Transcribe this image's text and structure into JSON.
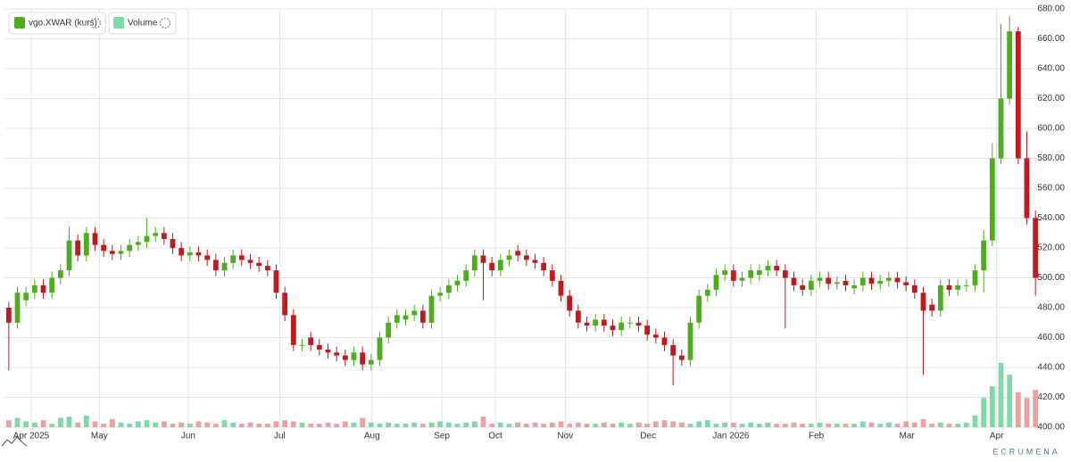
{
  "chart_data": {
    "type": "candlestick",
    "series": [
      {
        "name": "vgo.XWAR (kurs)",
        "color": "#4cae1c",
        "down_color": "#bf1a1f",
        "open": [
          480,
          470,
          485,
          490,
          495,
          490,
          500,
          505,
          525,
          515,
          530,
          522,
          518,
          516,
          518,
          522,
          524,
          528,
          530,
          526,
          520,
          515,
          517,
          515,
          512,
          505,
          510,
          515,
          512,
          510,
          508,
          505,
          490,
          475,
          455,
          460,
          455,
          452,
          450,
          448,
          445,
          450,
          442,
          445,
          460,
          470,
          472,
          475,
          478,
          470,
          488,
          490,
          495,
          498,
          505,
          515,
          510,
          505,
          512,
          518,
          515,
          512,
          510,
          505,
          498,
          488,
          478,
          470,
          468,
          472,
          468,
          465,
          470,
          470,
          468,
          462,
          460,
          455,
          448,
          445,
          470,
          488,
          492,
          502,
          505,
          498,
          500,
          502,
          505,
          508,
          505,
          500,
          495,
          492,
          498,
          500,
          496,
          498,
          493,
          495,
          500,
          496,
          498,
          500,
          497,
          495,
          490,
          482,
          478,
          495,
          492,
          495,
          495,
          505,
          525,
          580,
          620,
          665,
          580,
          540
        ],
        "high": [
          484,
          494,
          494,
          499,
          499,
          504,
          509,
          534,
          529,
          534,
          534,
          526,
          522,
          522,
          526,
          528,
          540,
          534,
          534,
          530,
          524,
          521,
          521,
          519,
          516,
          514,
          519,
          519,
          516,
          514,
          512,
          509,
          494,
          479,
          459,
          464,
          459,
          456,
          454,
          452,
          454,
          454,
          449,
          464,
          474,
          479,
          479,
          482,
          482,
          492,
          494,
          499,
          502,
          509,
          519,
          519,
          514,
          516,
          519,
          522,
          519,
          516,
          514,
          509,
          502,
          492,
          482,
          474,
          476,
          476,
          472,
          474,
          474,
          474,
          472,
          466,
          464,
          459,
          452,
          474,
          492,
          496,
          506,
          509,
          509,
          504,
          509,
          509,
          512,
          512,
          509,
          504,
          499,
          502,
          504,
          504,
          501,
          502,
          499,
          504,
          504,
          502,
          504,
          504,
          501,
          499,
          494,
          486,
          499,
          499,
          499,
          499,
          509,
          532,
          590,
          670,
          675,
          668,
          598,
          545
        ],
        "low": [
          438,
          466,
          481,
          486,
          486,
          486,
          496,
          501,
          511,
          511,
          518,
          514,
          512,
          512,
          514,
          518,
          520,
          524,
          522,
          516,
          511,
          511,
          511,
          508,
          501,
          501,
          506,
          508,
          506,
          504,
          501,
          486,
          471,
          451,
          451,
          451,
          448,
          446,
          444,
          441,
          441,
          438,
          438,
          441,
          456,
          466,
          468,
          471,
          466,
          466,
          484,
          486,
          491,
          494,
          501,
          485,
          501,
          501,
          508,
          511,
          508,
          506,
          501,
          494,
          484,
          474,
          466,
          464,
          464,
          464,
          461,
          461,
          466,
          464,
          458,
          456,
          451,
          428,
          441,
          441,
          466,
          484,
          488,
          498,
          494,
          494,
          496,
          498,
          501,
          501,
          466,
          491,
          488,
          488,
          494,
          492,
          492,
          491,
          489,
          491,
          492,
          492,
          494,
          493,
          491,
          486,
          435,
          474,
          474,
          488,
          488,
          491,
          491,
          490,
          521,
          576,
          616,
          576,
          536,
          488
        ],
        "close": [
          470,
          490,
          490,
          495,
          490,
          500,
          505,
          525,
          515,
          530,
          522,
          518,
          516,
          518,
          522,
          524,
          528,
          530,
          526,
          520,
          515,
          517,
          515,
          512,
          505,
          510,
          515,
          512,
          510,
          508,
          505,
          490,
          475,
          455,
          455,
          455,
          452,
          450,
          448,
          445,
          450,
          442,
          445,
          460,
          470,
          475,
          475,
          478,
          470,
          488,
          490,
          495,
          498,
          505,
          515,
          510,
          505,
          512,
          515,
          515,
          512,
          510,
          505,
          498,
          488,
          478,
          470,
          468,
          472,
          468,
          465,
          470,
          470,
          468,
          462,
          460,
          455,
          448,
          445,
          470,
          488,
          492,
          502,
          505,
          498,
          500,
          505,
          505,
          508,
          505,
          500,
          495,
          492,
          498,
          500,
          496,
          497,
          495,
          495,
          500,
          496,
          498,
          500,
          497,
          495,
          490,
          478,
          478,
          495,
          492,
          495,
          495,
          505,
          525,
          580,
          620,
          665,
          580,
          540,
          500
        ]
      },
      {
        "name": "Volume",
        "color": "#7fd8a8",
        "down_color": "#eba1a1",
        "values": [
          6,
          8,
          5,
          4,
          6,
          3,
          8,
          9,
          4,
          10,
          5,
          3,
          7,
          4,
          3,
          5,
          6,
          4,
          5,
          3,
          4,
          3,
          5,
          4,
          3,
          6,
          4,
          3,
          4,
          3,
          3,
          5,
          6,
          5,
          4,
          3,
          3,
          4,
          3,
          5,
          4,
          8,
          4,
          3,
          4,
          3,
          3,
          4,
          3,
          4,
          5,
          4,
          3,
          4,
          5,
          9,
          3,
          4,
          3,
          4,
          3,
          4,
          3,
          4,
          5,
          3,
          4,
          3,
          3,
          4,
          3,
          4,
          3,
          4,
          3,
          5,
          6,
          5,
          4,
          3,
          5,
          6,
          3,
          4,
          4,
          3,
          4,
          3,
          4,
          3,
          3,
          4,
          3,
          3,
          4,
          3,
          3,
          3,
          3,
          5,
          4,
          3,
          4,
          3,
          5,
          4,
          7,
          3,
          4,
          3,
          3,
          4,
          10,
          25,
          35,
          55,
          45,
          30,
          25,
          32
        ]
      }
    ],
    "ylim": [
      400,
      680
    ],
    "yticks": [
      {
        "value": 400,
        "label": "400.00"
      },
      {
        "value": 420,
        "label": "420.00"
      },
      {
        "value": 440,
        "label": "440.00"
      },
      {
        "value": 460,
        "label": "460.00"
      },
      {
        "value": 480,
        "label": "480.00"
      },
      {
        "value": 500,
        "label": "500.00"
      },
      {
        "value": 520,
        "label": "520.00"
      },
      {
        "value": 540,
        "label": "540.00"
      },
      {
        "value": 560,
        "label": "560.00"
      },
      {
        "value": 580,
        "label": "580.00"
      },
      {
        "value": 600,
        "label": "600.00"
      },
      {
        "value": 620,
        "label": "620.00"
      },
      {
        "value": 640,
        "label": "640.00"
      },
      {
        "value": 660,
        "label": "660.00"
      },
      {
        "value": 680,
        "label": "680.00"
      }
    ],
    "xlim": [
      -0.5,
      119.5
    ],
    "xticks": [
      {
        "value": 2.6,
        "label": "Apr 2025"
      },
      {
        "value": 10.5,
        "label": "May"
      },
      {
        "value": 20.8,
        "label": "Jun"
      },
      {
        "value": 31.4,
        "label": "Jul"
      },
      {
        "value": 42.1,
        "label": "Aug"
      },
      {
        "value": 50.2,
        "label": "Sep"
      },
      {
        "value": 56.4,
        "label": "Oct"
      },
      {
        "value": 64.5,
        "label": "Nov"
      },
      {
        "value": 74.1,
        "label": "Dec"
      },
      {
        "value": 83.7,
        "label": "Jan 2026"
      },
      {
        "value": 93.6,
        "label": "Feb"
      },
      {
        "value": 104.1,
        "label": "Mar"
      },
      {
        "value": 114.5,
        "label": "Apr"
      }
    ],
    "grid": true,
    "watermark": "ECRUMENA"
  }
}
